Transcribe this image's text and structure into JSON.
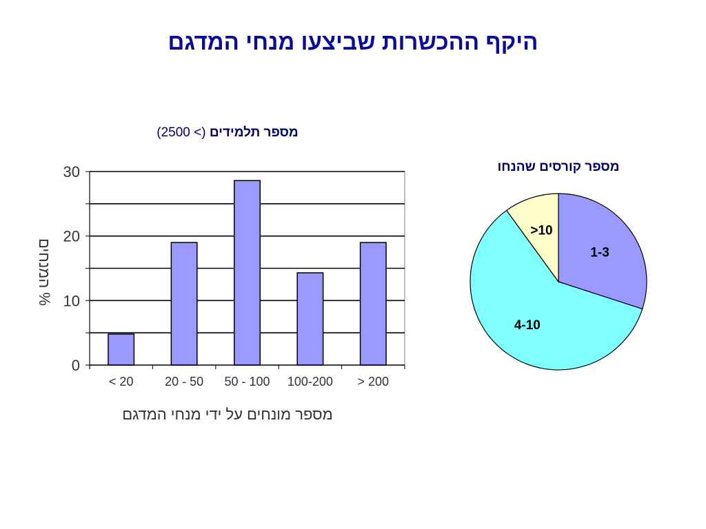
{
  "slide": {
    "title": "היקף ההכשרות שביצעו מנחי המדגם"
  },
  "chart_data": [
    {
      "type": "bar",
      "title_bold": "מספר תלמידים",
      "title_rest": " (> 2500)",
      "categories": [
        "< 20",
        "20 - 50",
        "50 - 100",
        "100-200",
        "> 200"
      ],
      "values": [
        4.8,
        19,
        28.6,
        14.3,
        19
      ],
      "xlabel": "מספר מונחים על ידי מנחי המדגם",
      "ylabel": "% המנחים",
      "ylim": [
        0,
        30
      ],
      "yticks": [
        "0",
        "10",
        "20",
        "30"
      ],
      "ytick_values": [
        0,
        10,
        20,
        30
      ],
      "gridlines": [
        0,
        5,
        10,
        15,
        20,
        25,
        30
      ],
      "grid": true,
      "legend": "none",
      "bar_color": "#9999ff"
    },
    {
      "type": "pie",
      "title": "מספר קורסים שהנחו",
      "slices": [
        {
          "label": "1-3",
          "value": 30,
          "color": "#9999ff"
        },
        {
          "label": "4-10",
          "value": 60,
          "color": "#80ffff"
        },
        {
          "label": ">10",
          "value": 10,
          "color": "#ffffcc"
        }
      ]
    }
  ]
}
